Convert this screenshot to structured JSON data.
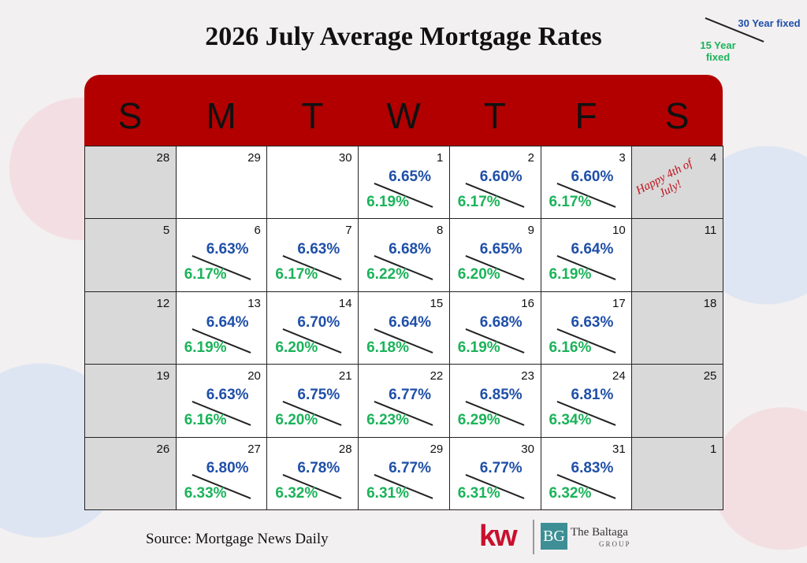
{
  "title": "2026 July Average Mortgage Rates",
  "legend": {
    "rate_30": "30 Year fixed",
    "rate_15": "15 Year fixed"
  },
  "weekdays": [
    "S",
    "M",
    "T",
    "W",
    "T",
    "F",
    "S"
  ],
  "weeks": [
    [
      {
        "day": 28
      },
      {
        "day": 29
      },
      {
        "day": 30
      },
      {
        "day": 1,
        "rate_30": "6.65%",
        "rate_15": "6.19%"
      },
      {
        "day": 2,
        "rate_30": "6.60%",
        "rate_15": "6.17%"
      },
      {
        "day": 3,
        "rate_30": "6.60%",
        "rate_15": "6.17%"
      },
      {
        "day": 4,
        "note": "Happy 4th of July!"
      }
    ],
    [
      {
        "day": 5
      },
      {
        "day": 6,
        "rate_30": "6.63%",
        "rate_15": "6.17%"
      },
      {
        "day": 7,
        "rate_30": "6.63%",
        "rate_15": "6.17%"
      },
      {
        "day": 8,
        "rate_30": "6.68%",
        "rate_15": "6.22%"
      },
      {
        "day": 9,
        "rate_30": "6.65%",
        "rate_15": "6.20%"
      },
      {
        "day": 10,
        "rate_30": "6.64%",
        "rate_15": "6.19%"
      },
      {
        "day": 11
      }
    ],
    [
      {
        "day": 12
      },
      {
        "day": 13,
        "rate_30": "6.64%",
        "rate_15": "6.19%"
      },
      {
        "day": 14,
        "rate_30": "6.70%",
        "rate_15": "6.20%"
      },
      {
        "day": 15,
        "rate_30": "6.64%",
        "rate_15": "6.18%"
      },
      {
        "day": 16,
        "rate_30": "6.68%",
        "rate_15": "6.19%"
      },
      {
        "day": 17,
        "rate_30": "6.63%",
        "rate_15": "6.16%"
      },
      {
        "day": 18
      }
    ],
    [
      {
        "day": 19
      },
      {
        "day": 20,
        "rate_30": "6.63%",
        "rate_15": "6.16%"
      },
      {
        "day": 21,
        "rate_30": "6.75%",
        "rate_15": "6.20%"
      },
      {
        "day": 22,
        "rate_30": "6.77%",
        "rate_15": "6.23%"
      },
      {
        "day": 23,
        "rate_30": "6.85%",
        "rate_15": "6.29%"
      },
      {
        "day": 24,
        "rate_30": "6.81%",
        "rate_15": "6.34%"
      },
      {
        "day": 25
      }
    ],
    [
      {
        "day": 26
      },
      {
        "day": 27,
        "rate_30": "6.80%",
        "rate_15": "6.33%"
      },
      {
        "day": 28,
        "rate_30": "6.78%",
        "rate_15": "6.32%"
      },
      {
        "day": 29,
        "rate_30": "6.77%",
        "rate_15": "6.31%"
      },
      {
        "day": 30,
        "rate_30": "6.77%",
        "rate_15": "6.31%"
      },
      {
        "day": 31,
        "rate_30": "6.83%",
        "rate_15": "6.32%"
      },
      {
        "day": 1
      }
    ]
  ],
  "source": "Source: Mortgage News Daily",
  "logos": {
    "kw": "kw",
    "bg": "BG",
    "company": "The Baltaga",
    "company_sub": "Group"
  }
}
